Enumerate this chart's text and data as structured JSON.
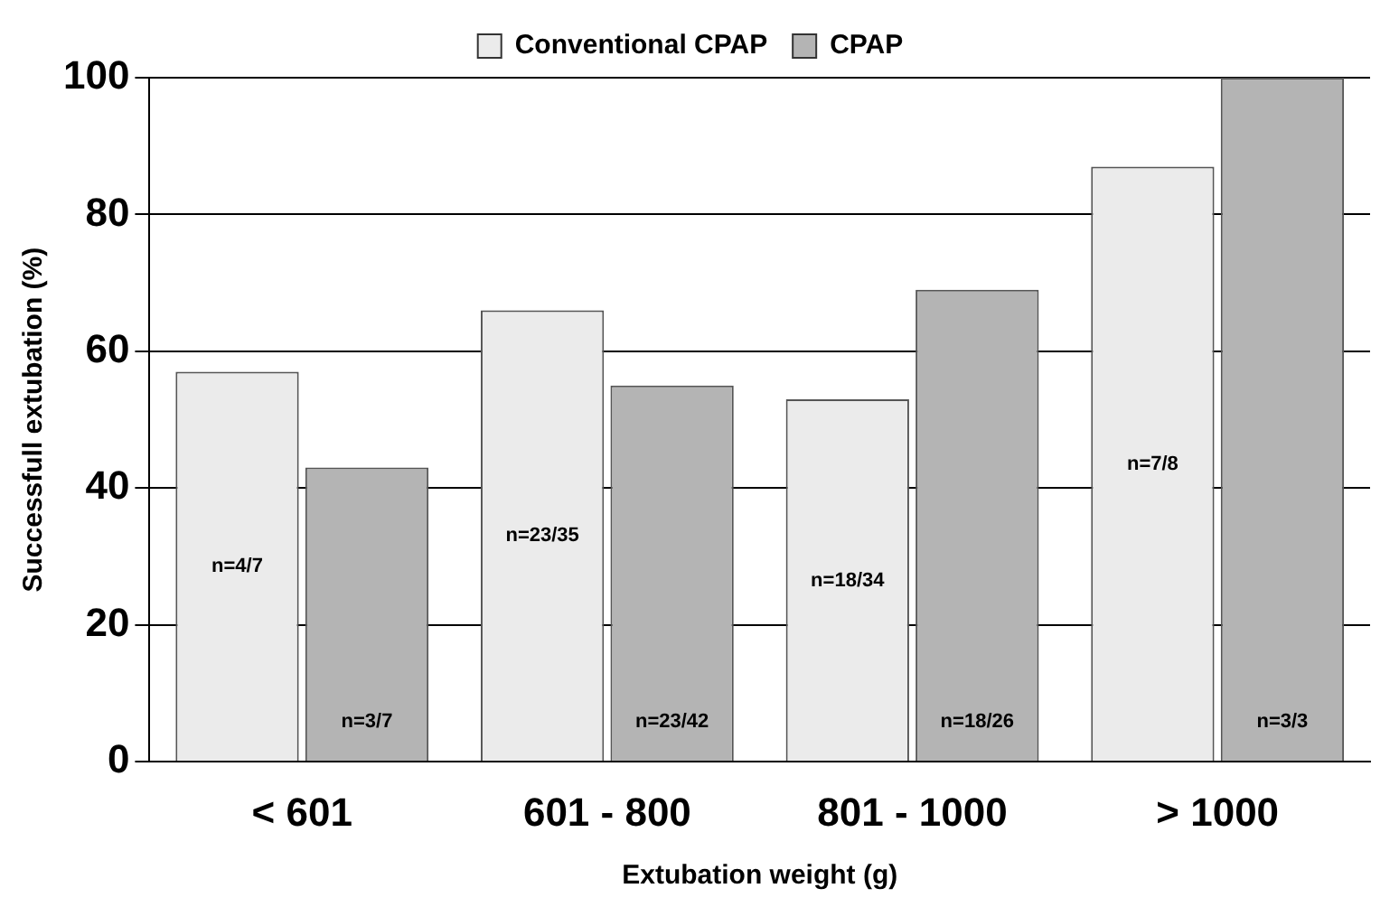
{
  "chart_data": {
    "type": "bar",
    "xlabel": "Extubation weight (g)",
    "ylabel": "Successfull extubation (%)",
    "categories": [
      "< 601",
      "601 - 800",
      "801 - 1000",
      "> 1000"
    ],
    "series": [
      {
        "name": "Conventional CPAP",
        "color": "#ebebeb",
        "values": [
          57,
          66,
          53,
          87
        ],
        "value_labels": [
          "n=4/7",
          "n=23/35",
          "n=18/34",
          "n=7/8"
        ]
      },
      {
        "name": "CPAP",
        "color": "#b4b4b4",
        "values": [
          43,
          55,
          69,
          100
        ],
        "value_labels": [
          "n=3/7",
          "n=23/42",
          "n=18/26",
          "n=3/3"
        ]
      }
    ],
    "ylim": [
      0,
      100
    ],
    "yticks": [
      0,
      20,
      40,
      60,
      80,
      100
    ],
    "grid": "y",
    "legend": "top"
  }
}
